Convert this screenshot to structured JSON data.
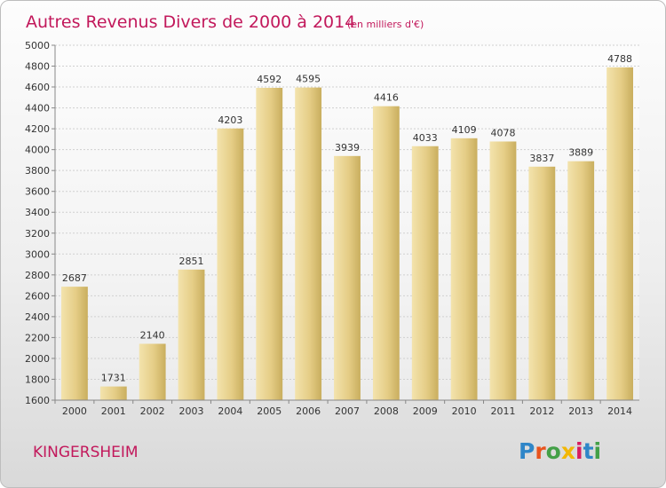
{
  "chart_data": {
    "type": "bar",
    "title": "Autres Revenus Divers de 2000 à 2014",
    "subtitle": "(en milliers d'€)",
    "categories": [
      "2000",
      "2001",
      "2002",
      "2003",
      "2004",
      "2005",
      "2006",
      "2007",
      "2008",
      "2009",
      "2010",
      "2011",
      "2012",
      "2013",
      "2014"
    ],
    "values": [
      2687,
      1731,
      2140,
      2851,
      4203,
      4592,
      4595,
      3939,
      4416,
      4033,
      4109,
      4078,
      3837,
      3889,
      4788
    ],
    "data_labels": [
      "2687",
      "1731",
      "2140",
      "2851",
      "4203",
      "4592",
      "4595",
      "3939",
      "4416",
      "4033",
      "4109",
      "4078",
      "3837",
      "3889",
      "4788"
    ],
    "ylim": [
      1600,
      5000
    ],
    "yticks": [
      1600,
      1800,
      2000,
      2200,
      2400,
      2600,
      2800,
      3000,
      3200,
      3400,
      3600,
      3800,
      4000,
      4200,
      4400,
      4600,
      4800,
      5000
    ],
    "ytick_labels": [
      "1600",
      "1800",
      "2000",
      "2200",
      "2400",
      "2600",
      "2800",
      "3000",
      "3200",
      "3400",
      "3600",
      "3800",
      "4000",
      "4200",
      "4400",
      "4600",
      "4800",
      "5000"
    ],
    "grid": true,
    "bar_color": "#e7d08e"
  },
  "footer": {
    "location": "KINGERSHEIM",
    "brand_letters": [
      "P",
      "r",
      "o",
      "x",
      "i",
      "t",
      "i"
    ],
    "brand_colors": [
      "#2f86c8",
      "#e8541e",
      "#43a047",
      "#f2b705",
      "#d81b60",
      "#2f86c8",
      "#43a047"
    ]
  }
}
